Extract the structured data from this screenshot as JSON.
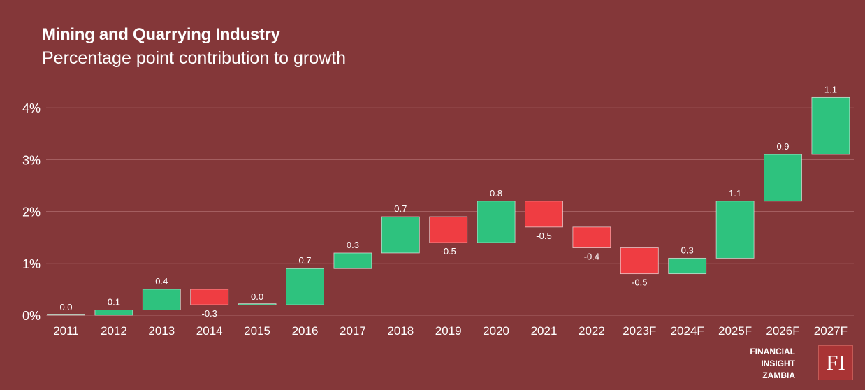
{
  "title": "Mining and Quarrying Industry",
  "subtitle": "Percentage point contribution to growth",
  "brand": {
    "lines": [
      "FINANCIAL",
      "INSIGHT",
      "ZAMBIA"
    ],
    "logo_text": "FI"
  },
  "colors": {
    "background": "#843739",
    "increase": "#2ec27e",
    "decrease": "#ef3d42",
    "gridline": "#a86566",
    "text": "#ffffff"
  },
  "chart_data": {
    "type": "bar",
    "subtype": "waterfall",
    "categories": [
      "2011",
      "2012",
      "2013",
      "2014",
      "2015",
      "2016",
      "2017",
      "2018",
      "2019",
      "2020",
      "2021",
      "2022",
      "2023F",
      "2024F",
      "2025F",
      "2026F",
      "2027F"
    ],
    "values": [
      0.0,
      0.1,
      0.4,
      -0.3,
      0.0,
      0.7,
      0.3,
      0.7,
      -0.5,
      0.8,
      -0.5,
      -0.4,
      -0.5,
      0.3,
      1.1,
      0.9,
      1.1
    ],
    "value_labels": [
      "0.0",
      "0.1",
      "0.4",
      "-0.3",
      "0.0",
      "0.7",
      "0.3",
      "0.7",
      "-0.5",
      "0.8",
      "-0.5",
      "-0.4",
      "-0.5",
      "0.3",
      "1.1",
      "0.9",
      "1.1"
    ],
    "bar_ranges": [
      [
        0.0,
        0.0
      ],
      [
        0.0,
        0.1
      ],
      [
        0.1,
        0.5
      ],
      [
        0.2,
        0.5
      ],
      [
        0.2,
        0.2
      ],
      [
        0.2,
        0.9
      ],
      [
        0.9,
        1.2
      ],
      [
        1.2,
        1.9
      ],
      [
        1.4,
        1.9
      ],
      [
        1.4,
        2.2
      ],
      [
        1.7,
        2.2
      ],
      [
        1.3,
        1.7
      ],
      [
        0.8,
        1.3
      ],
      [
        0.8,
        1.1
      ],
      [
        1.1,
        2.2
      ],
      [
        2.2,
        3.1
      ],
      [
        3.1,
        4.2
      ]
    ],
    "ylim": [
      0,
      4.3
    ],
    "yticks": [
      0,
      1,
      2,
      3,
      4
    ],
    "ytick_labels": [
      "0%",
      "1%",
      "2%",
      "3%",
      "4%"
    ],
    "xlabel": "",
    "ylabel": "",
    "grid": true,
    "legend": "none"
  }
}
